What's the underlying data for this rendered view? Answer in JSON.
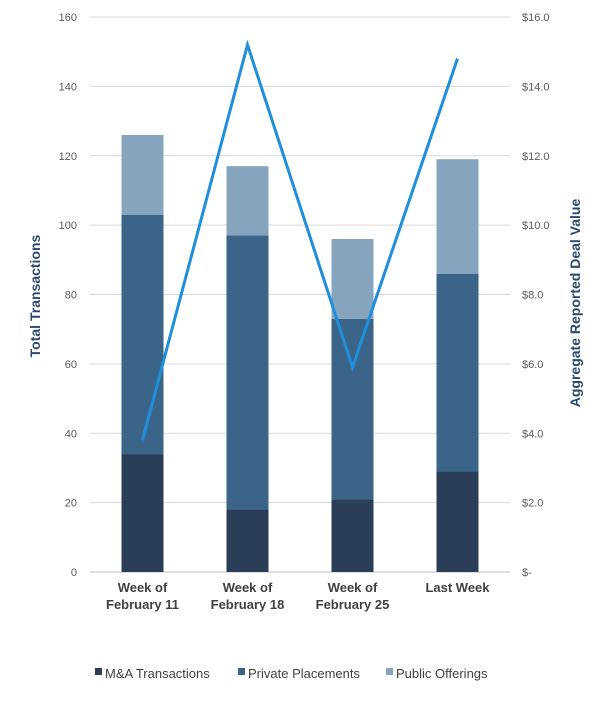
{
  "chart_data": {
    "type": "bar",
    "stacked": true,
    "categories": [
      [
        "Week of",
        "February 11"
      ],
      [
        "Week of",
        "February 18"
      ],
      [
        "Week of",
        "February 25"
      ],
      [
        "Last Week"
      ]
    ],
    "series": [
      {
        "name": "M&A Transactions",
        "values": [
          34,
          18,
          21,
          29
        ],
        "color": "#2a3f57"
      },
      {
        "name": "Private Placements",
        "values": [
          69,
          79,
          52,
          57
        ],
        "color": "#3a6589"
      },
      {
        "name": "Public Offerings",
        "values": [
          23,
          20,
          23,
          33
        ],
        "color": "#87a4bf"
      }
    ],
    "line_series": {
      "values": [
        3.8,
        15.2,
        5.9,
        14.8
      ],
      "color": "#1f8fdc",
      "axis": "right"
    },
    "y_left": {
      "label": "Total Transactions",
      "lim": [
        0,
        160
      ],
      "ticks": [
        0,
        20,
        40,
        60,
        80,
        100,
        120,
        140,
        160
      ],
      "tick_labels": [
        "0",
        "20",
        "40",
        "60",
        "80",
        "100",
        "120",
        "140",
        "160"
      ]
    },
    "y_right": {
      "label": "Aggregate Reported Deal Value",
      "lim": [
        0,
        16
      ],
      "ticks": [
        0,
        2,
        4,
        6,
        8,
        10,
        12,
        14,
        16
      ],
      "tick_labels": [
        "$-",
        "$2.0",
        "$4.0",
        "$6.0",
        "$8.0",
        "$10.0",
        "$12.0",
        "$14.0",
        "$16.0"
      ]
    },
    "grid": true,
    "legend": "bottom"
  }
}
